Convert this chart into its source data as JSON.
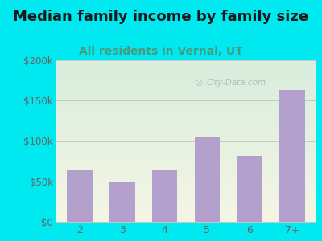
{
  "title": "Median family income by family size",
  "subtitle": "All residents in Vernal, UT",
  "categories": [
    "2",
    "3",
    "4",
    "5",
    "6",
    "7+"
  ],
  "values": [
    65000,
    50000,
    65000,
    105000,
    82000,
    163000
  ],
  "bar_color": "#b3a0cc",
  "title_fontsize": 13,
  "subtitle_fontsize": 10,
  "subtitle_color": "#4a9a7a",
  "title_color": "#1a1a1a",
  "background_outer": "#00e8f0",
  "ylim": [
    0,
    200000
  ],
  "yticks": [
    0,
    50000,
    100000,
    150000,
    200000
  ],
  "ytick_labels": [
    "$0",
    "$50k",
    "$100k",
    "$150k",
    "$200k"
  ],
  "grid_color": "#c8c8c8",
  "tick_color": "#666666",
  "watermark": "City-Data.com",
  "plot_bg_top": "#d8eedd",
  "plot_bg_bottom": "#f5f5e5"
}
